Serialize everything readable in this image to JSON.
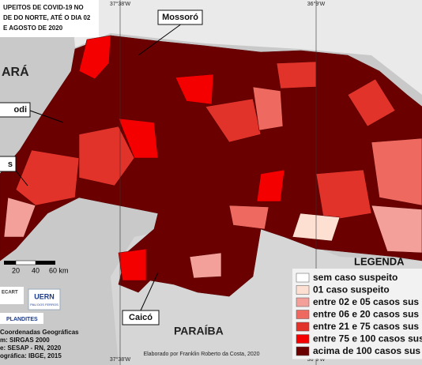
{
  "title_lines": [
    "UPEITOS DE COVID-19 NO",
    "DE DO NORTE, ATÉ O DIA 02",
    "E AGOSTO DE 2020"
  ],
  "places": {
    "mossoro": "Mossoró",
    "apodi": "odi",
    "other": "s",
    "caico": "Caicó",
    "ceara": "ARÁ",
    "paraiba": "PARAÍBA"
  },
  "coords": {
    "top_left": "37°38'W",
    "top_right": "36°9'W",
    "bottom_left": "37°38'W",
    "bottom_right": "36°9'W"
  },
  "scale": [
    "20",
    "40",
    "60 km"
  ],
  "legend": {
    "title": "LEGENDA",
    "items": [
      {
        "label": "sem caso suspeito",
        "color": "#ffffff"
      },
      {
        "label": "01 caso suspeito",
        "color": "#fde0d2"
      },
      {
        "label": "entre 02 e 05 casos sus",
        "color": "#f4a09a"
      },
      {
        "label": "entre 06 e 20 casos sus",
        "color": "#ee6a60"
      },
      {
        "label": "entre 21 e 75 casos sus",
        "color": "#e2332b"
      },
      {
        "label": "entre 75 e 100 casos sus",
        "color": "#f50000"
      },
      {
        "label": "acima de 100 casos sus",
        "color": "#6b0000"
      }
    ]
  },
  "credits": [
    "Coordenadas Geográficas",
    "m: SIRGAS 2000",
    "e: SESAP - RN, 2020",
    "ográfica: IBGE, 2015"
  ],
  "logos": {
    "ecart": "ECART",
    "uern": "UERN",
    "uern_sub": "PAU DOS FERROS",
    "plandites": "PLANDITES"
  },
  "author": "Elaborado por Franklin Roberto da Costa, 2020"
}
